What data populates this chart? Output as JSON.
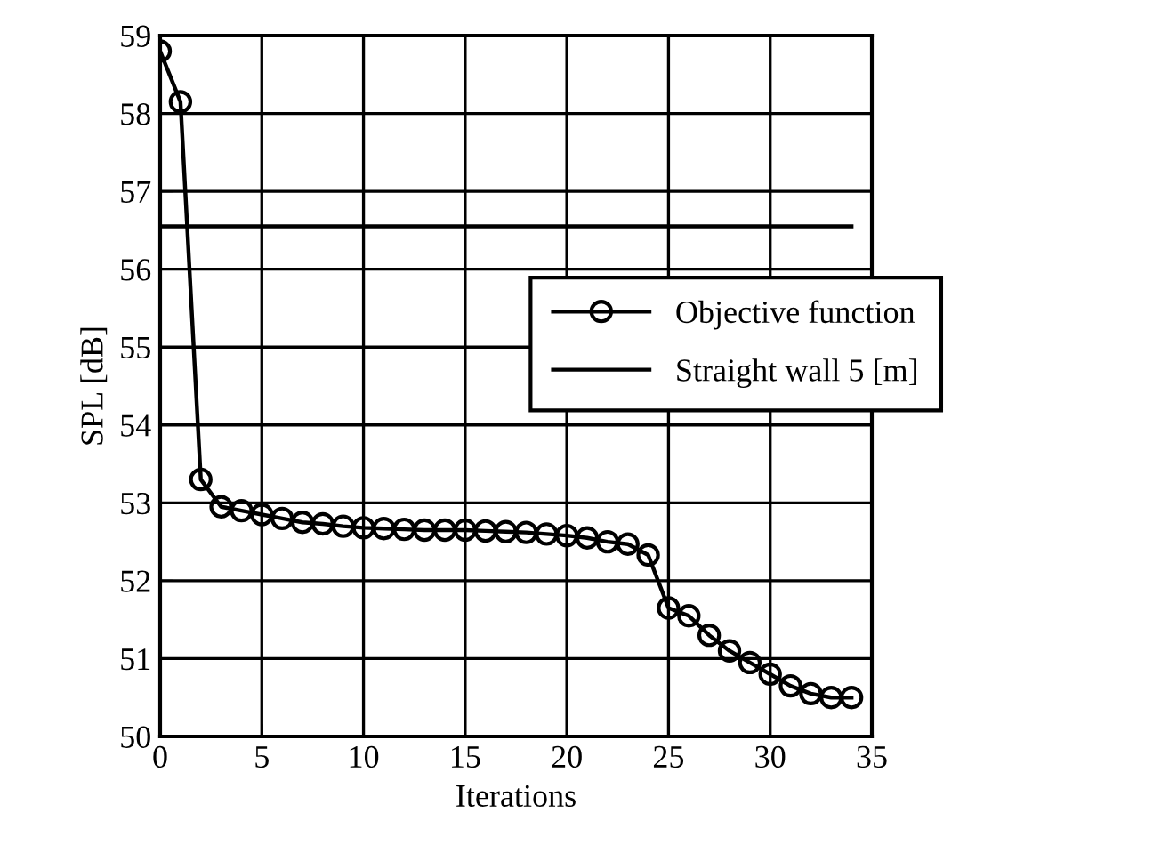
{
  "chart_data": {
    "type": "line",
    "xlabel": "Iterations",
    "ylabel": "SPL [dB]",
    "xlim": [
      0,
      35
    ],
    "xticks": [
      0,
      5,
      10,
      15,
      20,
      25,
      30,
      35
    ],
    "ylim": [
      50,
      59
    ],
    "yticks": [
      50,
      51,
      52,
      53,
      54,
      55,
      56,
      57,
      58,
      59
    ],
    "grid": true,
    "legend": "right",
    "series": [
      {
        "name": "Objective function",
        "color": "#000000",
        "marker": "circle",
        "x": [
          0,
          1,
          2,
          3,
          4,
          5,
          6,
          7,
          8,
          9,
          10,
          11,
          12,
          13,
          14,
          15,
          16,
          17,
          18,
          19,
          20,
          21,
          22,
          23,
          24,
          25,
          26,
          27,
          28,
          29,
          30,
          31,
          32,
          33,
          34
        ],
        "values": [
          58.8,
          58.15,
          53.3,
          52.95,
          52.9,
          52.85,
          52.8,
          52.75,
          52.73,
          52.7,
          52.68,
          52.67,
          52.66,
          52.65,
          52.65,
          52.65,
          52.64,
          52.63,
          52.62,
          52.6,
          52.58,
          52.55,
          52.5,
          52.47,
          52.33,
          51.65,
          51.55,
          51.3,
          51.1,
          50.95,
          50.8,
          50.65,
          50.55,
          50.5,
          50.5
        ]
      },
      {
        "name": "Straight wall 5 [m]",
        "color": "#000000",
        "marker": "none",
        "x": [
          0,
          34
        ],
        "values": [
          56.55,
          56.55
        ]
      }
    ]
  }
}
